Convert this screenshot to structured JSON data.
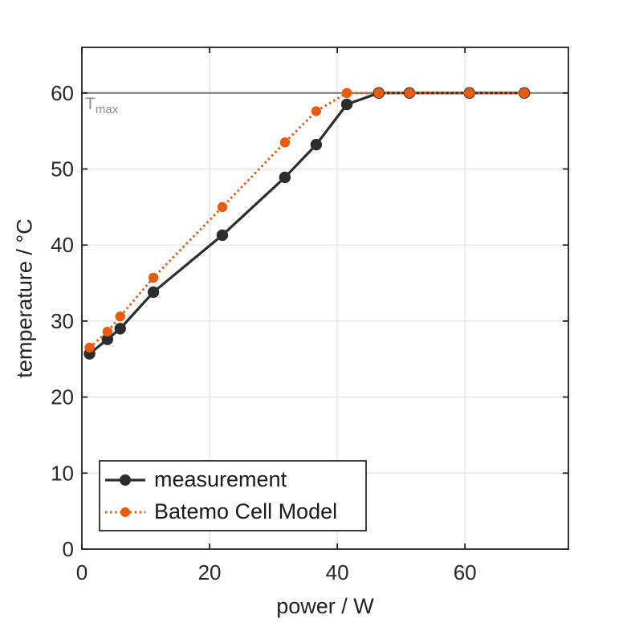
{
  "figure": {
    "background": "#ffffff"
  },
  "colors": {
    "measurement": "#2d2d2d",
    "model": "#e85c10",
    "grid": "#e3e3e3",
    "axis": "#222222",
    "tick_label": "#262626",
    "tmax_line": "#7f7f7f",
    "tmax_label": "#8c8c8c"
  },
  "chart_data": {
    "type": "line",
    "title": "",
    "xlabel": "power / W",
    "ylabel": "temperature / °C",
    "xlim": [
      0,
      76.2
    ],
    "ylim": [
      0,
      66
    ],
    "xticks": [
      0,
      20,
      40,
      60
    ],
    "yticks": [
      0,
      10,
      20,
      30,
      40,
      50,
      60
    ],
    "grid": true,
    "x": [
      1.2,
      4.0,
      6.0,
      11.2,
      22.0,
      31.8,
      36.7,
      41.5,
      46.5,
      51.3,
      60.7,
      69.3
    ],
    "series": [
      {
        "name": "measurement",
        "color": "#2d2d2d",
        "style": "solid",
        "marker": "circle",
        "values": [
          25.7,
          27.6,
          29.0,
          33.8,
          41.3,
          48.9,
          53.2,
          58.5,
          60,
          60,
          60,
          60
        ]
      },
      {
        "name": "Batemo Cell Model",
        "color": "#e85c10",
        "style": "dotted",
        "marker": "circle",
        "values": [
          26.5,
          28.6,
          30.6,
          35.7,
          45.0,
          53.5,
          57.6,
          60,
          60,
          60,
          60,
          60
        ]
      }
    ],
    "annotations": {
      "tmax": {
        "y": 60,
        "label_main": "T",
        "label_sub": "max"
      }
    },
    "legend": {
      "position": "bottom-left-inside",
      "entries": [
        "measurement",
        "Batemo Cell Model"
      ]
    }
  }
}
